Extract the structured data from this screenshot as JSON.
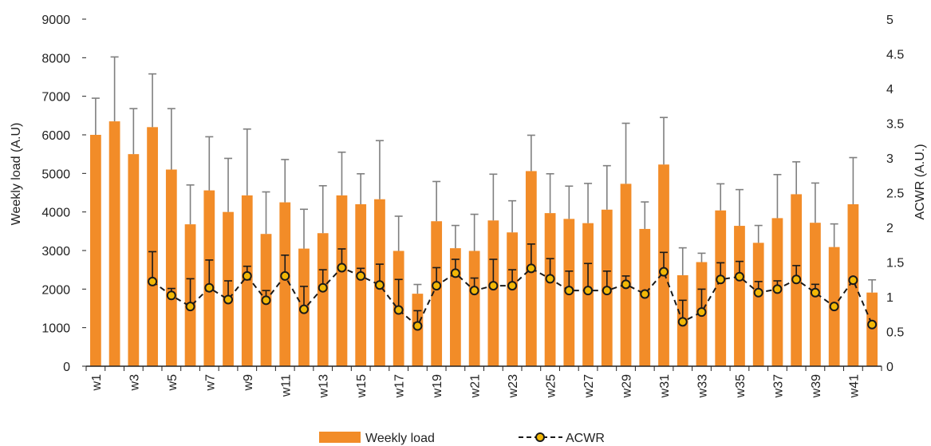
{
  "chart_data": {
    "type": "bar",
    "categories": [
      "w1",
      "w2",
      "w3",
      "w4",
      "w5",
      "w6",
      "w7",
      "w8",
      "w9",
      "w10",
      "w11",
      "w12",
      "w13",
      "w14",
      "w15",
      "w16",
      "w17",
      "w18",
      "w19",
      "w20",
      "w21",
      "w22",
      "w23",
      "w24",
      "w25",
      "w26",
      "w27",
      "w28",
      "w29",
      "w30",
      "w31",
      "w32",
      "w33",
      "w34",
      "w35",
      "w36",
      "w37",
      "w38",
      "w39",
      "w40",
      "w41",
      "w42"
    ],
    "tick_labels": [
      "w1",
      "w3",
      "w5",
      "w7",
      "w9",
      "w11",
      "w13",
      "w15",
      "w17",
      "w19",
      "w21",
      "w23",
      "w25",
      "w27",
      "w29",
      "w31",
      "w33",
      "w35",
      "w37",
      "w39",
      "w41"
    ],
    "ylabel": "Weekly load (A.U)",
    "y2label": "ACWR (A.U.)",
    "ylim": [
      0,
      9000
    ],
    "y2lim": [
      0,
      5
    ],
    "yticks": [
      0,
      1000,
      2000,
      3000,
      4000,
      5000,
      6000,
      7000,
      8000,
      9000
    ],
    "y2ticks": [
      "0",
      "0.5",
      "1",
      "1.5",
      "2",
      "2.5",
      "3",
      "3.5",
      "4",
      "4.5",
      "5"
    ],
    "series": [
      {
        "name": "Weekly load",
        "type": "bar",
        "axis": "left",
        "color": "#F28C28",
        "values": [
          6000,
          6350,
          5500,
          6200,
          5100,
          3680,
          4560,
          4000,
          4430,
          3430,
          4250,
          3050,
          3450,
          4430,
          4200,
          4330,
          2990,
          1880,
          3760,
          3060,
          2990,
          3780,
          3470,
          5060,
          3970,
          3820,
          3710,
          4060,
          4730,
          3560,
          5230,
          2360,
          2700,
          4040,
          3640,
          3200,
          3840,
          4460,
          3720,
          3090,
          4200,
          1910
        ],
        "error": [
          950,
          1670,
          1180,
          1380,
          1580,
          1020,
          1390,
          1390,
          1720,
          1090,
          1110,
          1020,
          1230,
          1120,
          790,
          1520,
          900,
          240,
          1030,
          590,
          950,
          1200,
          820,
          930,
          1020,
          850,
          1030,
          1140,
          1570,
          700,
          1220,
          710,
          230,
          690,
          940,
          450,
          1130,
          840,
          1030,
          600,
          1210,
          330
        ]
      },
      {
        "name": "ACWR",
        "type": "line",
        "axis": "right",
        "color": "#1a1a1a",
        "marker_color": "#F2B705",
        "values": [
          null,
          null,
          null,
          1.22,
          1.02,
          0.86,
          1.13,
          0.96,
          1.3,
          0.95,
          1.3,
          0.82,
          1.13,
          1.42,
          1.3,
          1.17,
          0.81,
          0.58,
          1.16,
          1.34,
          1.09,
          1.16,
          1.16,
          1.41,
          1.26,
          1.09,
          1.09,
          1.09,
          1.18,
          1.04,
          1.36,
          0.64,
          0.78,
          1.25,
          1.29,
          1.06,
          1.11,
          1.25,
          1.06,
          0.86,
          1.24,
          0.6
        ],
        "error": [
          null,
          null,
          null,
          0.43,
          0.1,
          0.4,
          0.4,
          0.27,
          0.14,
          0.14,
          0.3,
          0.33,
          0.26,
          0.27,
          0.11,
          0.3,
          0.44,
          0.22,
          0.26,
          0.2,
          0.18,
          0.38,
          0.23,
          0.35,
          0.29,
          0.28,
          0.39,
          0.28,
          0.12,
          0.0,
          0.28,
          0.31,
          0.33,
          0.24,
          0.22,
          0.16,
          0.12,
          0.2,
          0.12,
          0.0,
          0.0,
          0.0
        ]
      }
    ],
    "legend": {
      "placement": "bottom",
      "items": [
        {
          "label": "Weekly load",
          "swatch": "bar"
        },
        {
          "label": "ACWR",
          "swatch": "dashed-line-marker"
        }
      ]
    },
    "grid": false
  }
}
